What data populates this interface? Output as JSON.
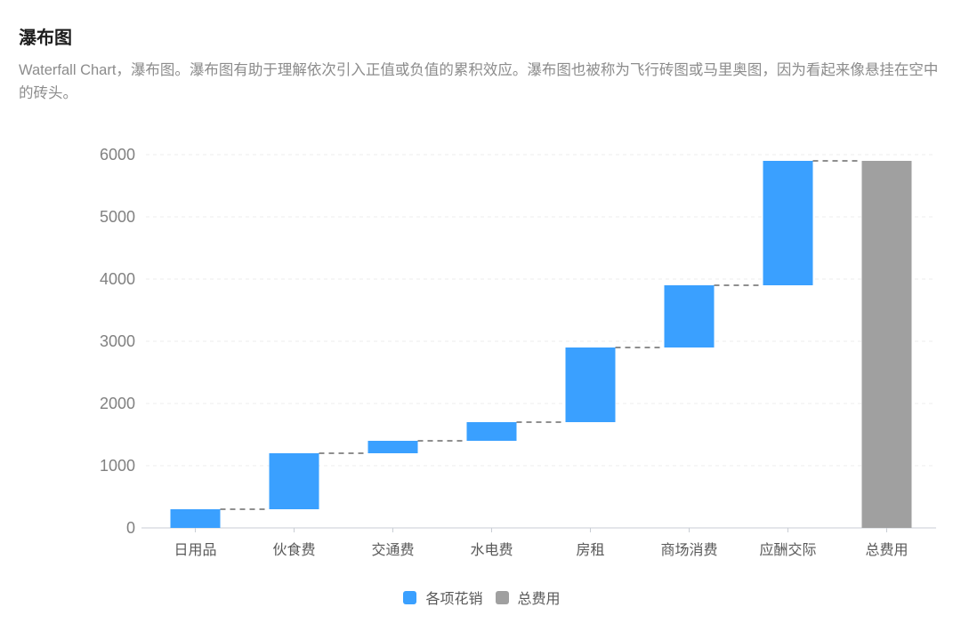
{
  "page": {
    "title": "瀑布图",
    "description": "Waterfall Chart，瀑布图。瀑布图有助于理解依次引入正值或负值的累积效应。瀑布图也被称为飞行砖图或马里奥图，因为看起来像悬挂在空中的砖头。"
  },
  "chart_data": {
    "type": "bar",
    "subtype": "waterfall",
    "categories": [
      "日用品",
      "伙食费",
      "交通费",
      "水电费",
      "房租",
      "商场消费",
      "应酬交际",
      "总费用"
    ],
    "series": [
      {
        "name": "各项花销",
        "values": [
          300,
          900,
          200,
          300,
          1200,
          1000,
          2000,
          null
        ]
      },
      {
        "name": "总费用",
        "values": [
          null,
          null,
          null,
          null,
          null,
          null,
          null,
          5900
        ]
      }
    ],
    "cumulative_start": [
      0,
      300,
      1200,
      1400,
      1700,
      2900,
      3900,
      0
    ],
    "cumulative_end": [
      300,
      1200,
      1400,
      1700,
      2900,
      3900,
      5900,
      5900
    ],
    "title": "",
    "xlabel": "",
    "ylabel": "",
    "ylim": [
      0,
      6000
    ],
    "yticks": [
      0,
      1000,
      2000,
      3000,
      4000,
      5000,
      6000
    ],
    "grid": "horizontal-dashed",
    "legend_position": "bottom",
    "legend": [
      {
        "label": "各项花销",
        "color": "#3AA0FF"
      },
      {
        "label": "总费用",
        "color": "#A0A0A0"
      }
    ],
    "connector_style": "dashed",
    "colors": {
      "item_bar": "#3AA0FF",
      "total_bar": "#A0A0A0",
      "connector": "#8F8F8F",
      "gridline": "#ECECEC",
      "axis_line": "#C9CDD4",
      "y_label": "#818181",
      "x_label": "#595959"
    }
  }
}
